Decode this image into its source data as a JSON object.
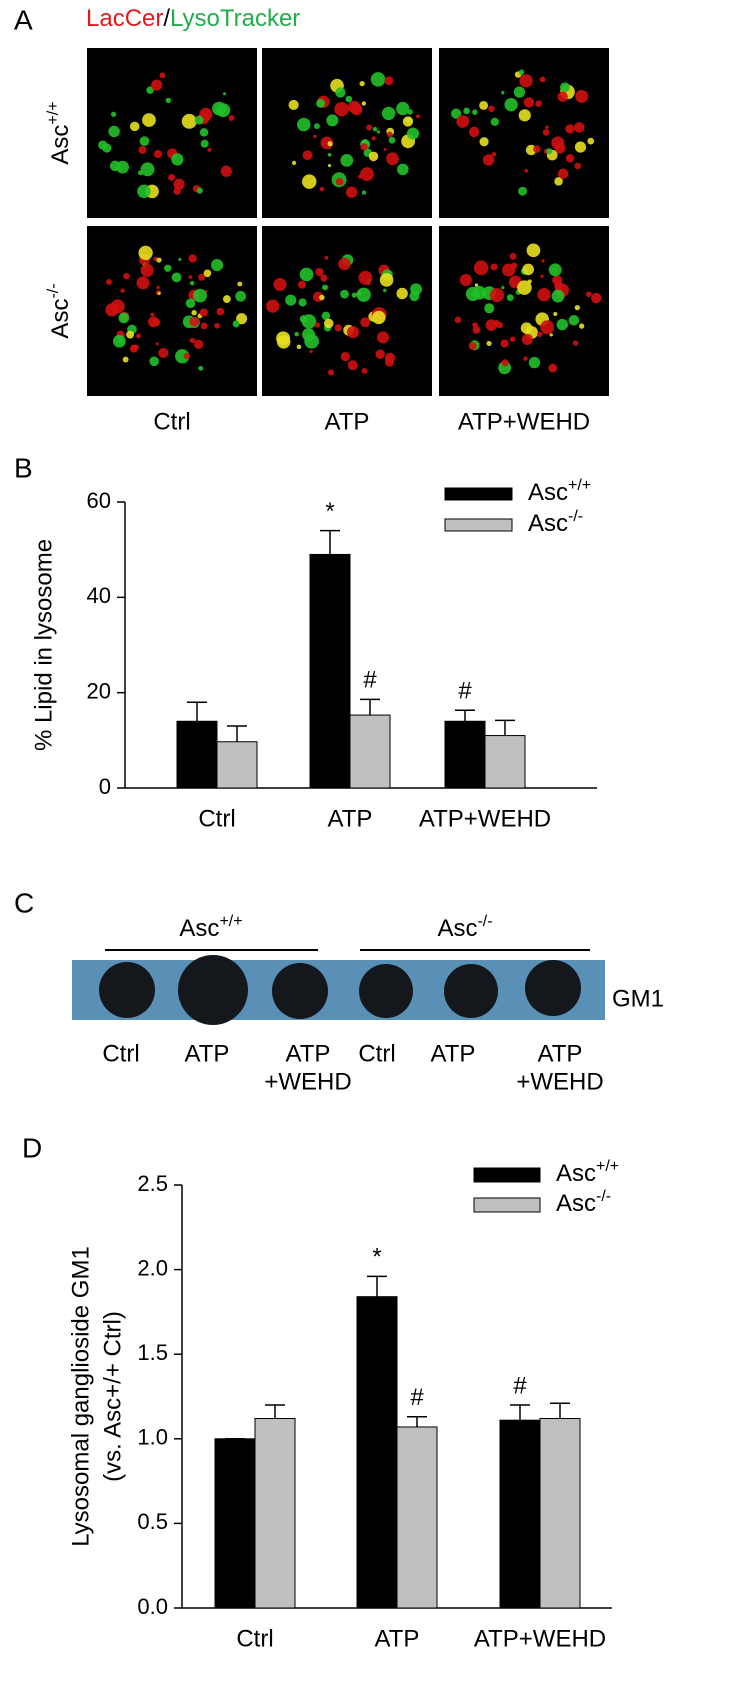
{
  "panel_a": {
    "letter": "A",
    "title_parts": [
      {
        "text": "LacCer",
        "color": "#e31a1c"
      },
      {
        "text": "/",
        "color": "#000000"
      },
      {
        "text": "LysoTracker",
        "color": "#1fae4b"
      }
    ],
    "rows": [
      {
        "name": "Asc",
        "sup": "+/+"
      },
      {
        "name": "Asc",
        "sup": "-/-"
      }
    ],
    "columns": [
      "Ctrl",
      "ATP",
      "ATP+WEHD"
    ]
  },
  "chart_data": [
    {
      "type": "bar",
      "letter": "B",
      "ylabel": [
        "% Lipid in lysosome"
      ],
      "categories": [
        "Ctrl",
        "ATP",
        "ATP+WEHD"
      ],
      "series": [
        {
          "name": "Asc",
          "sup": "+/+",
          "color": "#000000",
          "values": [
            14,
            49,
            14
          ],
          "errors": [
            4,
            5,
            2.3
          ],
          "annotations": [
            null,
            "*",
            "#"
          ]
        },
        {
          "name": "Asc",
          "sup": "-/-",
          "color": "#c0c0c0",
          "values": [
            9.7,
            15.3,
            11
          ],
          "errors": [
            3.3,
            3.3,
            3.2
          ],
          "annotations": [
            null,
            "#",
            null
          ]
        }
      ],
      "ylim": [
        0,
        60
      ],
      "yticks": [
        0,
        20,
        40,
        60
      ],
      "legend": "upper right"
    },
    {
      "type": "bar",
      "letter": "D",
      "ylabel": [
        "Lysosomal ganglioside GM1",
        "(vs. Asc+/+ Ctrl)"
      ],
      "categories": [
        "Ctrl",
        "ATP",
        "ATP+WEHD"
      ],
      "series": [
        {
          "name": "Asc",
          "sup": "+/+",
          "color": "#000000",
          "values": [
            1.0,
            1.84,
            1.11
          ],
          "errors": [
            0,
            0.12,
            0.09
          ],
          "annotations": [
            null,
            "*",
            "#"
          ]
        },
        {
          "name": "Asc",
          "sup": "-/-",
          "color": "#c0c0c0",
          "values": [
            1.12,
            1.07,
            1.12
          ],
          "errors": [
            0.08,
            0.06,
            0.09
          ],
          "annotations": [
            null,
            "#",
            null
          ]
        }
      ],
      "ylim": [
        0,
        2.5
      ],
      "yticks": [
        {
          "value": 0,
          "label": "0.0"
        },
        {
          "value": 0.5,
          "label": "0.5"
        },
        {
          "value": 1,
          "label": "1.0"
        },
        {
          "value": 1.5,
          "label": "1.5"
        },
        {
          "value": 2,
          "label": "2.0"
        },
        {
          "value": 2.5,
          "label": "2.5"
        }
      ],
      "legend": "upper right"
    }
  ],
  "panel_c": {
    "letter": "C",
    "groups": [
      {
        "name": "Asc",
        "sup": "+/+"
      },
      {
        "name": "Asc",
        "sup": "-/-"
      }
    ],
    "band_label": "GM1",
    "lanes": [
      [
        "Ctrl"
      ],
      [
        "ATP"
      ],
      [
        "ATP",
        "+WEHD"
      ],
      [
        "Ctrl"
      ],
      [
        "ATP"
      ],
      [
        "ATP",
        "+WEHD"
      ]
    ]
  }
}
